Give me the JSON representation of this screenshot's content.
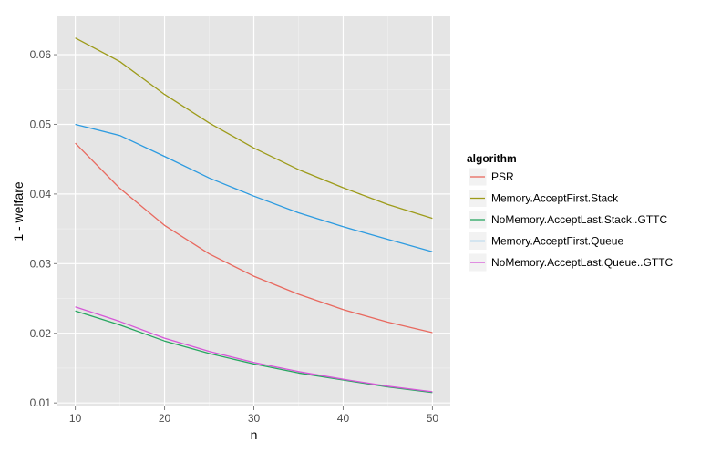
{
  "chart_data": {
    "type": "line",
    "title": "",
    "xlabel": "n",
    "ylabel": "1 - welfare",
    "xlim": [
      8,
      52
    ],
    "ylim": [
      0.0095,
      0.0655
    ],
    "xticks": [
      10,
      20,
      30,
      40,
      50
    ],
    "yticks": [
      0.01,
      0.02,
      0.03,
      0.04,
      0.05,
      0.06
    ],
    "ytick_labels": [
      "0.01",
      "0.02",
      "0.03",
      "0.04",
      "0.05",
      "0.06"
    ],
    "grid": true,
    "background": "#e5e5e5",
    "legend": {
      "title": "algorithm",
      "placement": "right"
    },
    "x": [
      10,
      15,
      20,
      25,
      30,
      35,
      40,
      45,
      50
    ],
    "series": [
      {
        "name": "PSR",
        "color": "#e8695f",
        "values": [
          0.0473,
          0.0408,
          0.0355,
          0.0314,
          0.0282,
          0.0256,
          0.0234,
          0.0216,
          0.0201
        ]
      },
      {
        "name": "Memory.AcceptFirst.Stack",
        "color": "#9d9b1a",
        "values": [
          0.0624,
          0.059,
          0.0543,
          0.0502,
          0.0466,
          0.0435,
          0.0409,
          0.0385,
          0.0365
        ]
      },
      {
        "name": "NoMemory.AcceptLast.Stack..GTTC",
        "color": "#27a660",
        "values": [
          0.0232,
          0.0212,
          0.0189,
          0.0171,
          0.0156,
          0.0143,
          0.0133,
          0.0123,
          0.0115
        ]
      },
      {
        "name": "Memory.AcceptFirst.Queue",
        "color": "#2d9be0",
        "values": [
          0.05,
          0.0484,
          0.0454,
          0.0423,
          0.0397,
          0.0373,
          0.0353,
          0.0335,
          0.0317
        ]
      },
      {
        "name": "NoMemory.AcceptLast.Queue..GTTC",
        "color": "#d657d8",
        "values": [
          0.0238,
          0.0217,
          0.0193,
          0.0174,
          0.0158,
          0.0145,
          0.0134,
          0.0124,
          0.0116
        ]
      }
    ]
  }
}
